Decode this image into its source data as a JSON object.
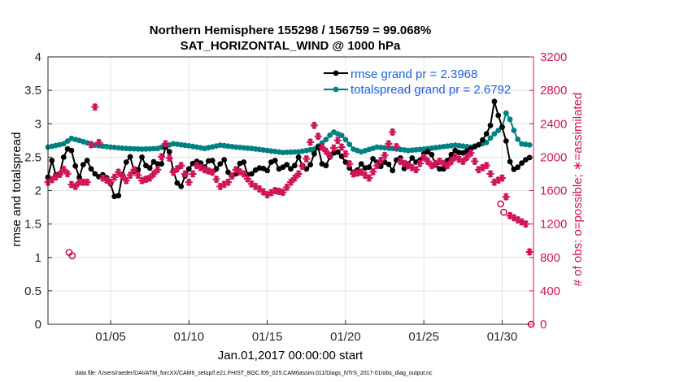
{
  "chart_data": {
    "type": "line",
    "title": "Northern Hemisphere 155298 / 156759 = 99.068%",
    "subtitle": "SAT_HORIZONTAL_WIND @ 1000 hPa",
    "xlabel": "Jan.01,2017 00:00:00 start",
    "ylabel_left": "rmse and totalspread",
    "ylabel_right": "# of obs: o=possible; ∗=assimilated",
    "footer": "data file: /Users/raeder/DAI/ATM_forcXX/CAM6_setup/f.e21.FHIST_BGC.f09_025.CAM6assim.011/Diags_NTrS_2017-01/obs_diag_output.nc",
    "grid": true,
    "legend_position": "top-right",
    "colors": {
      "rmse": "#000000",
      "totalspread": "#008080",
      "obs": "#d0145a",
      "legend_text": "#1f5fe0",
      "right_axis": "#d0145a"
    },
    "xlim": [
      1.0,
      32.0
    ],
    "ylim_left": [
      0,
      4
    ],
    "ylim_right": [
      0,
      3200
    ],
    "x_ticks": [
      5,
      10,
      15,
      20,
      25,
      30
    ],
    "x_tick_labels": [
      "01/05",
      "01/10",
      "01/15",
      "01/20",
      "01/25",
      "01/30"
    ],
    "y_ticks_left": [
      0,
      0.5,
      1,
      1.5,
      2,
      2.5,
      3,
      3.5,
      4
    ],
    "y_tick_labels_left": [
      "0",
      "0.5",
      "1",
      "1.5",
      "2",
      "2.5",
      "3",
      "3.5",
      "4"
    ],
    "y_ticks_right": [
      0,
      400,
      800,
      1200,
      1600,
      2000,
      2400,
      2800,
      3200
    ],
    "y_tick_labels_right": [
      "0",
      "400",
      "800",
      "1200",
      "1600",
      "2000",
      "2400",
      "2800",
      "3200"
    ],
    "series": [
      {
        "name": "rmse grand pr = 2.3968",
        "axis": "left",
        "style": "line-dot",
        "anchors": [
          [
            1.0,
            2.2
          ],
          [
            1.3,
            2.5
          ],
          [
            1.6,
            2.1
          ],
          [
            2.0,
            2.5
          ],
          [
            2.4,
            2.7
          ],
          [
            2.7,
            2.4
          ],
          [
            3.0,
            2.2
          ],
          [
            3.4,
            2.5
          ],
          [
            3.8,
            2.3
          ],
          [
            4.2,
            2.2
          ],
          [
            4.6,
            2.25
          ],
          [
            5.0,
            2.1
          ],
          [
            5.4,
            1.8
          ],
          [
            5.8,
            2.3
          ],
          [
            6.2,
            2.55
          ],
          [
            6.6,
            2.2
          ],
          [
            7.0,
            2.5
          ],
          [
            7.4,
            2.3
          ],
          [
            7.8,
            2.45
          ],
          [
            8.2,
            2.35
          ],
          [
            8.6,
            2.75
          ],
          [
            9.0,
            2.3
          ],
          [
            9.4,
            2.0
          ],
          [
            9.8,
            2.25
          ],
          [
            10.2,
            2.4
          ],
          [
            10.6,
            2.45
          ],
          [
            11.0,
            2.35
          ],
          [
            11.4,
            2.5
          ],
          [
            11.8,
            2.3
          ],
          [
            12.2,
            2.5
          ],
          [
            12.6,
            2.2
          ],
          [
            13.0,
            2.25
          ],
          [
            13.4,
            2.5
          ],
          [
            13.8,
            2.2
          ],
          [
            14.2,
            2.3
          ],
          [
            14.6,
            2.35
          ],
          [
            15.0,
            2.3
          ],
          [
            15.4,
            2.5
          ],
          [
            15.8,
            2.3
          ],
          [
            16.2,
            2.4
          ],
          [
            16.6,
            2.3
          ],
          [
            17.0,
            2.5
          ],
          [
            17.4,
            2.3
          ],
          [
            17.8,
            2.4
          ],
          [
            18.2,
            2.7
          ],
          [
            18.6,
            2.3
          ],
          [
            19.0,
            2.5
          ],
          [
            19.4,
            2.6
          ],
          [
            19.8,
            2.5
          ],
          [
            20.2,
            2.35
          ],
          [
            20.6,
            2.25
          ],
          [
            21.0,
            2.4
          ],
          [
            21.4,
            2.3
          ],
          [
            21.8,
            2.5
          ],
          [
            22.2,
            2.35
          ],
          [
            22.6,
            2.45
          ],
          [
            23.0,
            2.3
          ],
          [
            23.4,
            2.55
          ],
          [
            23.8,
            2.3
          ],
          [
            24.2,
            2.5
          ],
          [
            24.6,
            2.4
          ],
          [
            25.0,
            2.55
          ],
          [
            25.4,
            2.6
          ],
          [
            25.8,
            2.35
          ],
          [
            26.2,
            2.3
          ],
          [
            26.6,
            2.5
          ],
          [
            27.0,
            2.6
          ],
          [
            27.4,
            2.55
          ],
          [
            27.8,
            2.6
          ],
          [
            28.2,
            2.65
          ],
          [
            28.6,
            2.7
          ],
          [
            29.0,
            2.85
          ],
          [
            29.3,
            3.0
          ],
          [
            29.6,
            3.5
          ],
          [
            29.8,
            3.0
          ],
          [
            30.0,
            2.95
          ],
          [
            30.3,
            2.7
          ],
          [
            30.6,
            2.3
          ],
          [
            31.0,
            2.35
          ],
          [
            31.4,
            2.45
          ],
          [
            31.8,
            2.5
          ]
        ]
      },
      {
        "name": "totalspread grand pr = 2.6792",
        "axis": "left",
        "style": "line-dot",
        "anchors": [
          [
            1.0,
            2.65
          ],
          [
            2.0,
            2.7
          ],
          [
            2.5,
            2.78
          ],
          [
            3.0,
            2.75
          ],
          [
            4.0,
            2.68
          ],
          [
            5.0,
            2.65
          ],
          [
            6.0,
            2.63
          ],
          [
            7.0,
            2.62
          ],
          [
            8.0,
            2.63
          ],
          [
            9.0,
            2.7
          ],
          [
            10.0,
            2.67
          ],
          [
            11.0,
            2.63
          ],
          [
            12.0,
            2.68
          ],
          [
            13.0,
            2.65
          ],
          [
            14.0,
            2.63
          ],
          [
            15.0,
            2.6
          ],
          [
            16.0,
            2.57
          ],
          [
            17.0,
            2.58
          ],
          [
            18.0,
            2.62
          ],
          [
            18.7,
            2.75
          ],
          [
            19.2,
            2.88
          ],
          [
            19.8,
            2.82
          ],
          [
            20.5,
            2.62
          ],
          [
            21.0,
            2.58
          ],
          [
            22.0,
            2.65
          ],
          [
            23.0,
            2.63
          ],
          [
            24.0,
            2.6
          ],
          [
            25.0,
            2.62
          ],
          [
            26.0,
            2.65
          ],
          [
            27.0,
            2.68
          ],
          [
            28.0,
            2.65
          ],
          [
            29.0,
            2.72
          ],
          [
            29.5,
            2.85
          ],
          [
            30.0,
            2.95
          ],
          [
            30.3,
            3.2
          ],
          [
            30.6,
            3.0
          ],
          [
            30.9,
            2.8
          ],
          [
            31.2,
            2.7
          ],
          [
            31.8,
            2.68
          ]
        ]
      },
      {
        "name": "possible",
        "axis": "right",
        "style": "marker-o",
        "values": [
          [
            2.35,
            860
          ],
          [
            2.55,
            820
          ],
          [
            29.9,
            1440
          ],
          [
            30.1,
            1340
          ],
          [
            31.85,
            0
          ]
        ]
      },
      {
        "name": "assimilated",
        "axis": "right",
        "style": "marker-asterisk",
        "anchors": [
          [
            1.0,
            1700
          ],
          [
            1.4,
            1750
          ],
          [
            1.8,
            1800
          ],
          [
            2.1,
            1880
          ],
          [
            2.6,
            1620
          ],
          [
            3.0,
            1700
          ],
          [
            3.5,
            1700
          ],
          [
            4.0,
            2600
          ],
          [
            4.5,
            1750
          ],
          [
            5.0,
            1700
          ],
          [
            5.5,
            1820
          ],
          [
            6.0,
            1720
          ],
          [
            6.5,
            1850
          ],
          [
            7.0,
            1720
          ],
          [
            7.5,
            1750
          ],
          [
            8.0,
            1850
          ],
          [
            8.5,
            2160
          ],
          [
            9.0,
            1820
          ],
          [
            9.5,
            1900
          ],
          [
            10.0,
            1700
          ],
          [
            10.5,
            1900
          ],
          [
            11.0,
            1850
          ],
          [
            11.5,
            1820
          ],
          [
            12.0,
            1650
          ],
          [
            12.5,
            1700
          ],
          [
            13.0,
            1850
          ],
          [
            13.5,
            1800
          ],
          [
            14.0,
            1680
          ],
          [
            14.5,
            1620
          ],
          [
            15.0,
            1550
          ],
          [
            15.5,
            1600
          ],
          [
            16.0,
            1580
          ],
          [
            16.5,
            1700
          ],
          [
            17.0,
            1800
          ],
          [
            17.5,
            1980
          ],
          [
            18.0,
            2380
          ],
          [
            18.5,
            2120
          ],
          [
            19.0,
            2020
          ],
          [
            19.5,
            2200
          ],
          [
            20.0,
            2040
          ],
          [
            20.5,
            1800
          ],
          [
            21.0,
            1820
          ],
          [
            21.5,
            1750
          ],
          [
            22.0,
            1900
          ],
          [
            22.5,
            2020
          ],
          [
            23.0,
            2300
          ],
          [
            23.5,
            1950
          ],
          [
            24.0,
            1900
          ],
          [
            24.5,
            1850
          ],
          [
            25.0,
            2000
          ],
          [
            25.5,
            1900
          ],
          [
            26.0,
            1950
          ],
          [
            26.5,
            1900
          ],
          [
            27.0,
            2000
          ],
          [
            27.5,
            1950
          ],
          [
            28.0,
            2050
          ],
          [
            28.5,
            1850
          ],
          [
            29.0,
            1900
          ],
          [
            29.5,
            1700
          ],
          [
            30.0,
            1750
          ],
          [
            30.5,
            1300
          ],
          [
            31.0,
            1250
          ],
          [
            31.5,
            1200
          ],
          [
            31.8,
            800
          ]
        ]
      }
    ]
  }
}
